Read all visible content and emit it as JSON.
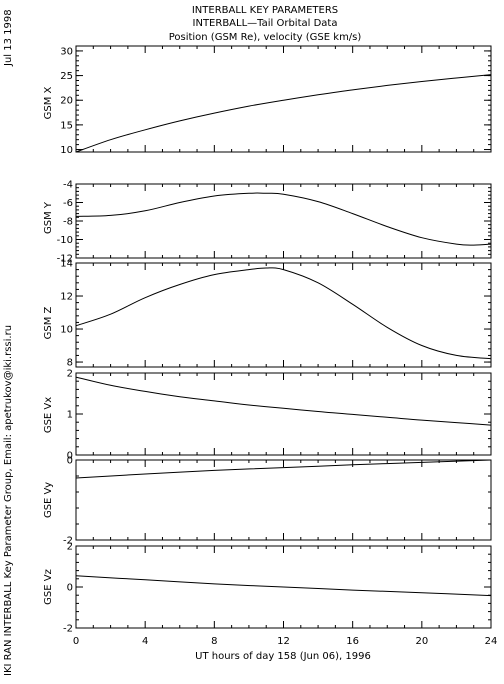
{
  "header": {
    "title_line1": "INTERBALL KEY PARAMETERS",
    "title_line2": "INTERBALL—Tail Orbital Data",
    "title_line3": "Position (GSM Re), velocity (GSE km/s)"
  },
  "sidebar": {
    "date": "Jul 13 1998",
    "credit": "IKI RAN INTERBALL Key Parameter Group, Email: apetrukov@iki.rssi.ru"
  },
  "xaxis": {
    "label": "UT hours of day 158 (Jun 06), 1996",
    "ticks": [
      0,
      4,
      8,
      12,
      16,
      20,
      24
    ],
    "range": [
      0,
      24
    ]
  },
  "chart_data": [
    {
      "type": "line",
      "ylabel": "GSM X",
      "ylim": [
        9.5,
        31
      ],
      "yticks": [
        10,
        15,
        20,
        25,
        30
      ],
      "x": [
        0,
        2,
        4,
        6,
        8,
        10,
        12,
        14,
        16,
        18,
        20,
        22,
        24
      ],
      "series": [
        {
          "values": [
            9.5,
            12.0,
            14.0,
            15.8,
            17.4,
            18.8,
            20.0,
            21.1,
            22.1,
            23.0,
            23.8,
            24.5,
            25.2
          ]
        }
      ]
    },
    {
      "type": "line",
      "ylabel": "GSM Y",
      "ylim": [
        -12,
        -4
      ],
      "yticks": [
        -4,
        -6,
        -8,
        -10,
        -12
      ],
      "x": [
        0,
        2,
        4,
        6,
        8,
        10,
        11,
        12,
        14,
        16,
        18,
        20,
        22,
        23,
        24
      ],
      "series": [
        {
          "values": [
            -7.5,
            -7.4,
            -6.9,
            -6.0,
            -5.3,
            -5.0,
            -5.0,
            -5.1,
            -5.9,
            -7.2,
            -8.6,
            -9.8,
            -10.5,
            -10.6,
            -10.5
          ]
        }
      ]
    },
    {
      "type": "line",
      "ylabel": "GSM Z",
      "ylim": [
        7.7,
        14
      ],
      "yticks": [
        8,
        10,
        12,
        14
      ],
      "x": [
        0,
        2,
        4,
        6,
        8,
        10,
        11,
        12,
        14,
        16,
        18,
        20,
        22,
        24
      ],
      "series": [
        {
          "values": [
            10.2,
            10.9,
            11.9,
            12.7,
            13.3,
            13.6,
            13.7,
            13.6,
            12.8,
            11.5,
            10.1,
            9.0,
            8.4,
            8.2
          ]
        }
      ]
    },
    {
      "type": "line",
      "ylabel": "GSE Vx",
      "ylim": [
        0,
        2
      ],
      "yticks": [
        0,
        1,
        2
      ],
      "x": [
        0,
        2,
        4,
        6,
        8,
        10,
        12,
        14,
        16,
        18,
        20,
        22,
        24
      ],
      "series": [
        {
          "values": [
            1.9,
            1.7,
            1.55,
            1.42,
            1.32,
            1.22,
            1.14,
            1.06,
            0.99,
            0.92,
            0.85,
            0.79,
            0.73
          ]
        }
      ]
    },
    {
      "type": "line",
      "ylabel": "GSE Vy",
      "ylim": [
        -2,
        0
      ],
      "yticks": [
        0,
        -2
      ],
      "x": [
        0,
        4,
        8,
        12,
        16,
        20,
        24
      ],
      "series": [
        {
          "values": [
            -0.45,
            -0.35,
            -0.26,
            -0.19,
            -0.12,
            -0.06,
            0.0
          ]
        }
      ]
    },
    {
      "type": "line",
      "ylabel": "GSE Vz",
      "ylim": [
        -2,
        2
      ],
      "yticks": [
        2,
        0,
        -2
      ],
      "x": [
        0,
        4,
        8,
        12,
        16,
        20,
        24
      ],
      "series": [
        {
          "values": [
            0.55,
            0.35,
            0.15,
            0.0,
            -0.15,
            -0.28,
            -0.42
          ]
        }
      ]
    }
  ]
}
